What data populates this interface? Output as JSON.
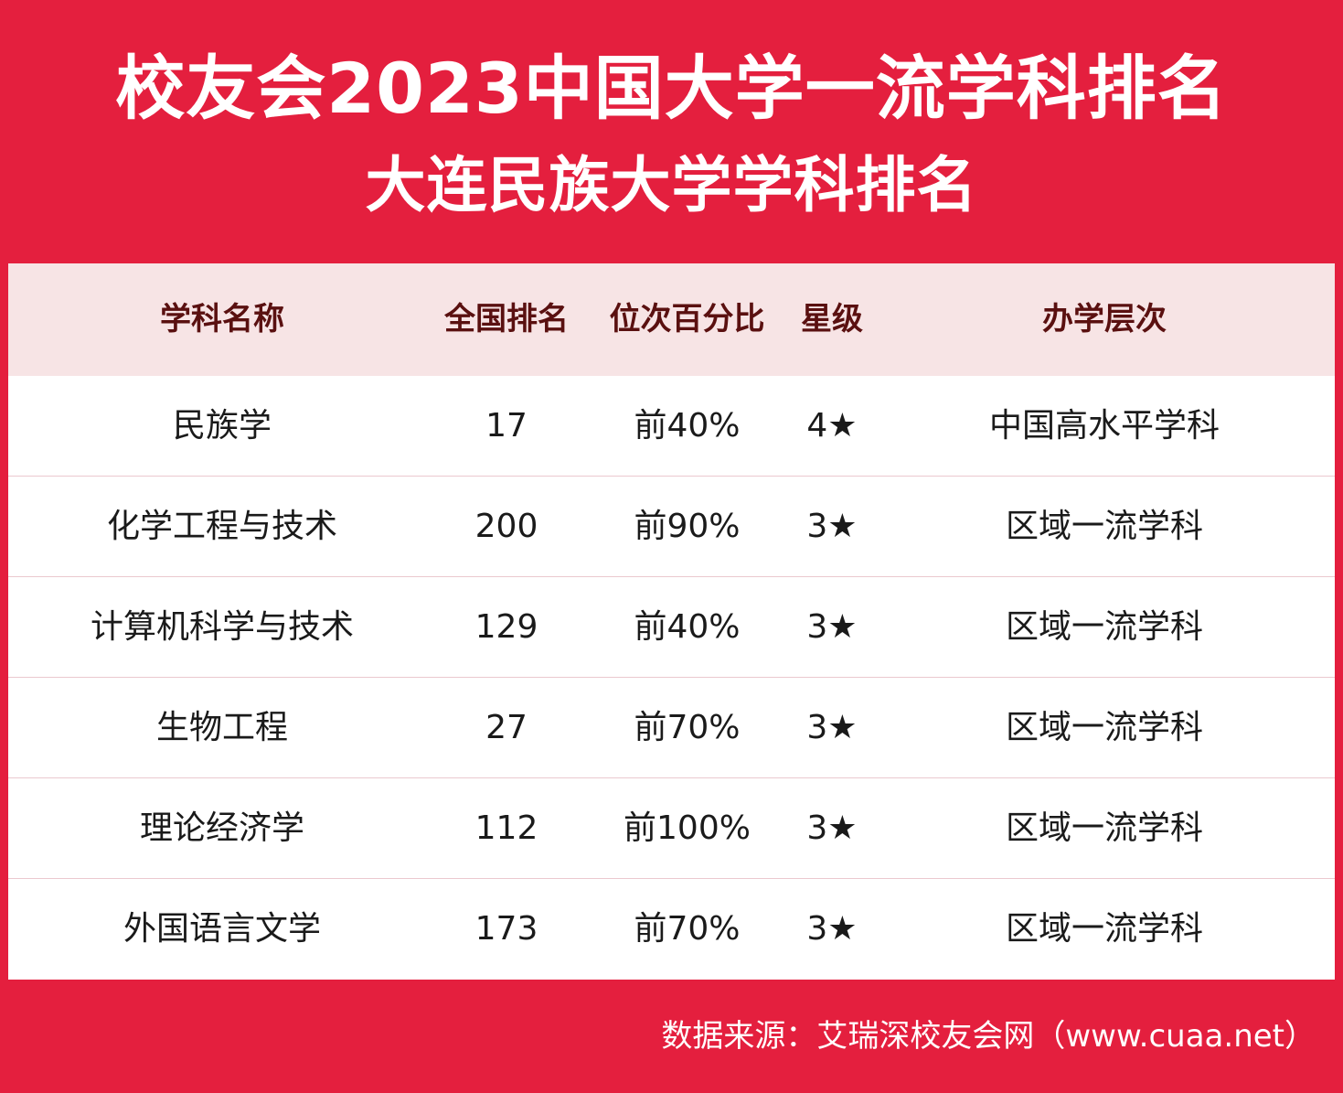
{
  "title_line1": "校友会2023中国大学一流学科排名",
  "title_line2": "大连民族大学学科排名",
  "table": {
    "headers": [
      "学科名称",
      "全国排名",
      "位次百分比",
      "星级",
      "办学层次"
    ],
    "rows": [
      [
        "民族学",
        "17",
        "前40%",
        "4★",
        "中国高水平学科"
      ],
      [
        "化学工程与技术",
        "200",
        "前90%",
        "3★",
        "区域一流学科"
      ],
      [
        "计算机科学与技术",
        "129",
        "前40%",
        "3★",
        "区域一流学科"
      ],
      [
        "生物工程",
        "27",
        "前70%",
        "3★",
        "区域一流学科"
      ],
      [
        "理论经济学",
        "112",
        "前100%",
        "3★",
        "区域一流学科"
      ],
      [
        "外国语言文学",
        "173",
        "前70%",
        "3★",
        "区域一流学科"
      ]
    ]
  },
  "source": "数据来源：艾瑞深校友会网（www.cuaa.net）",
  "colors": {
    "brand_red": "#E41F3E",
    "header_bg": "#F7E4E5",
    "header_text": "#5A1010"
  }
}
